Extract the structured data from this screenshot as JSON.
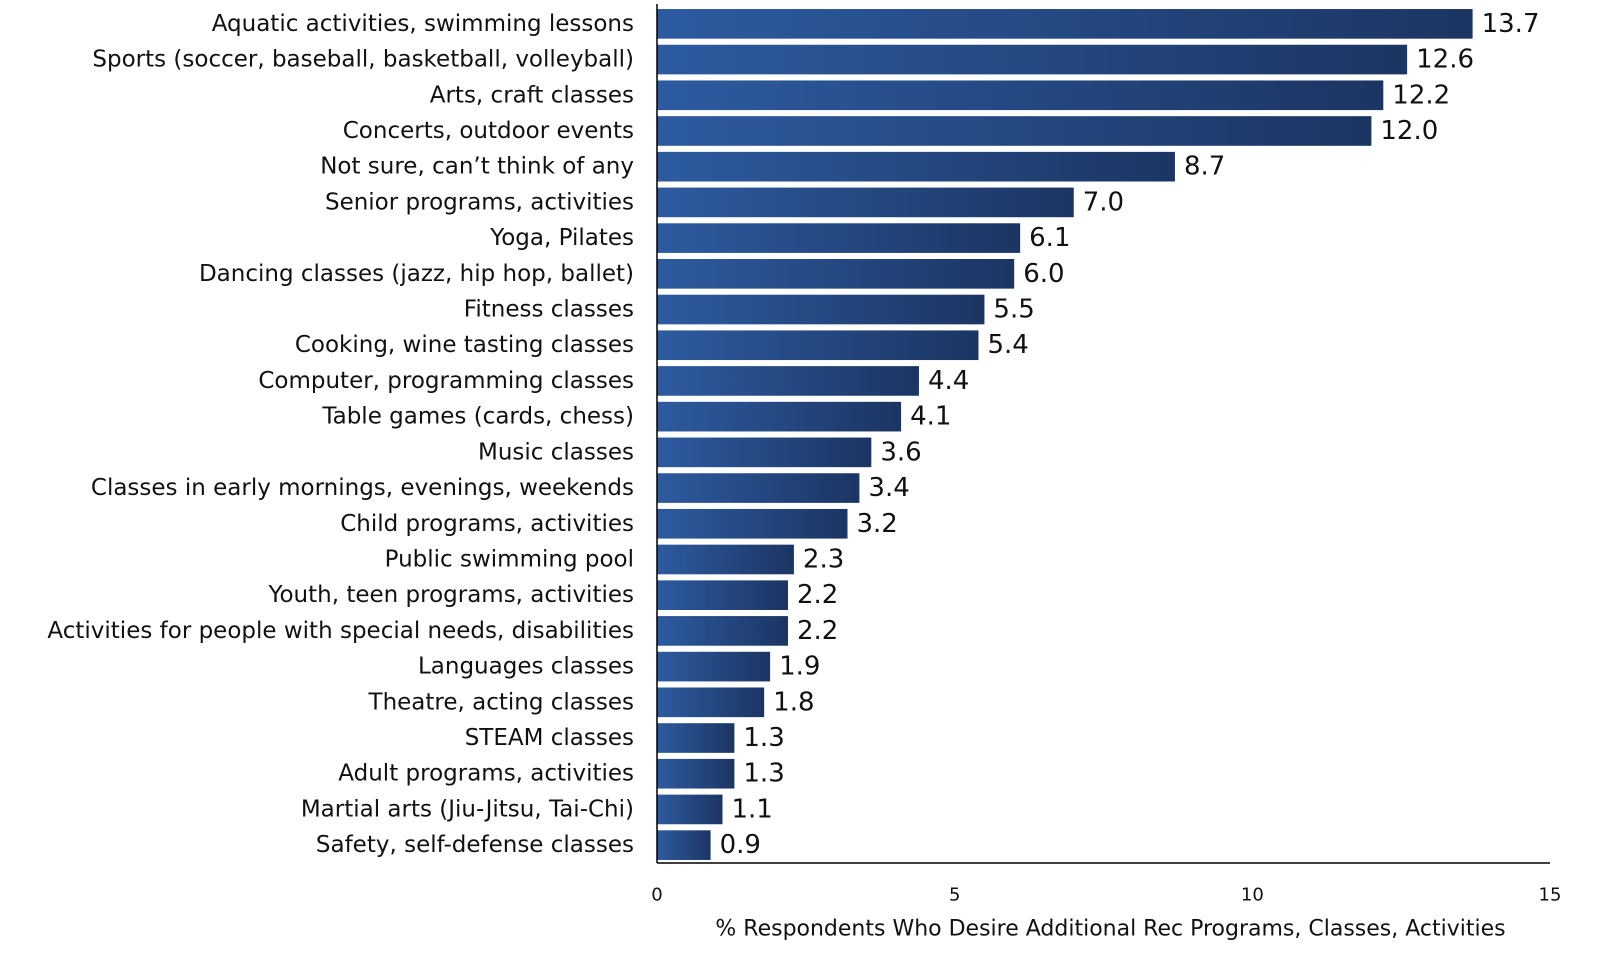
{
  "chart_data": {
    "type": "bar",
    "orientation": "horizontal",
    "categories": [
      "Aquatic activities, swimming lessons",
      "Sports (soccer, baseball, basketball, volleyball)",
      "Arts, craft classes",
      "Concerts, outdoor events",
      "Not sure, can’t think of any",
      "Senior programs, activities",
      "Yoga, Pilates",
      "Dancing classes (jazz, hip hop, ballet)",
      "Fitness classes",
      "Cooking, wine tasting classes",
      "Computer, programming classes",
      "Table games (cards, chess)",
      "Music classes",
      "Classes in early mornings, evenings, weekends",
      "Child programs, activities",
      "Public swimming pool",
      "Youth, teen programs, activities",
      "Activities for people with special needs, disabilities",
      "Languages classes",
      "Theatre, acting classes",
      "STEAM classes",
      "Adult programs, activities",
      "Martial arts (Jiu-Jitsu, Tai-Chi)",
      "Safety, self-defense classes"
    ],
    "values": [
      13.7,
      12.6,
      12.2,
      12.0,
      8.7,
      7.0,
      6.1,
      6.0,
      5.5,
      5.4,
      4.4,
      4.1,
      3.6,
      3.4,
      3.2,
      2.3,
      2.2,
      2.2,
      1.9,
      1.8,
      1.3,
      1.3,
      1.1,
      0.9
    ],
    "value_labels": [
      "13.7",
      "12.6",
      "12.2",
      "12.0",
      "8.7",
      "7.0",
      "6.1",
      "6.0",
      "5.5",
      "5.4",
      "4.4",
      "4.1",
      "3.6",
      "3.4",
      "3.2",
      "2.3",
      "2.2",
      "2.2",
      "1.9",
      "1.8",
      "1.3",
      "1.3",
      "1.1",
      "0.9"
    ],
    "xticks": [
      0,
      5,
      10,
      15
    ],
    "xlim": [
      0,
      15
    ],
    "xlabel": "% Respondents Who Desire Additional Rec Programs, Classes, Activities",
    "title": "",
    "grid": false,
    "colors": {
      "bar_light": "#2d5ba0",
      "bar_dark": "#1c3563",
      "axis": "#000000"
    }
  }
}
